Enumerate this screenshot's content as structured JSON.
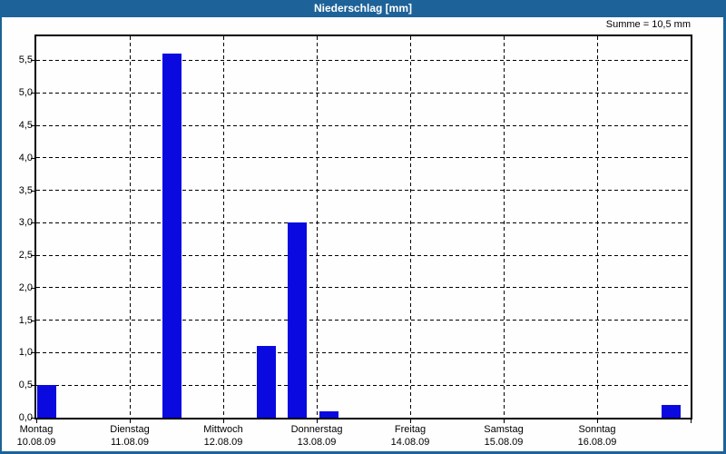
{
  "window": {
    "title": "Niederschlag [mm]"
  },
  "colors": {
    "titlebar_bg": "#1d6298",
    "title_text": "#ffffff",
    "window_border": "#1d6298",
    "bar_fill": "#0a0ae0",
    "plot_border": "#000000",
    "grid": "#000000",
    "background": "#fdfefd",
    "text": "#000000"
  },
  "chart_data": {
    "type": "bar",
    "title": "Niederschlag [mm]",
    "unit": "mm",
    "sum_label": "Summe = 10,5 mm",
    "sum_value_mm": 10.5,
    "ylim": [
      0,
      5.87
    ],
    "grid": "dashed",
    "legend": "none",
    "y_ticks": [
      {
        "value": 0.0,
        "label": "0,0"
      },
      {
        "value": 0.5,
        "label": "0,5"
      },
      {
        "value": 1.0,
        "label": "1,0"
      },
      {
        "value": 1.5,
        "label": "1,5"
      },
      {
        "value": 2.0,
        "label": "2,0"
      },
      {
        "value": 2.5,
        "label": "2,5"
      },
      {
        "value": 3.0,
        "label": "3,0"
      },
      {
        "value": 3.5,
        "label": "3,5"
      },
      {
        "value": 4.0,
        "label": "4,0"
      },
      {
        "value": 4.5,
        "label": "4,5"
      },
      {
        "value": 5.0,
        "label": "5,0"
      },
      {
        "value": 5.5,
        "label": "5,5"
      }
    ],
    "x_days": [
      {
        "weekday": "Montag",
        "date": "10.08.09"
      },
      {
        "weekday": "Dienstag",
        "date": "11.08.09"
      },
      {
        "weekday": "Mittwoch",
        "date": "12.08.09"
      },
      {
        "weekday": "Donnerstag",
        "date": "13.08.09"
      },
      {
        "weekday": "Freitag",
        "date": "14.08.09"
      },
      {
        "weekday": "Samstag",
        "date": "15.08.09"
      },
      {
        "weekday": "Sonntag",
        "date": "16.08.09"
      }
    ],
    "x_range_days": 7,
    "bar_width_days": 0.205,
    "bars": [
      {
        "day": "Montag",
        "x_day": 0.01,
        "value": 0.5
      },
      {
        "day": "Dienstag",
        "x_day": 1.35,
        "value": 5.6
      },
      {
        "day": "Mittwoch",
        "x_day": 2.36,
        "value": 1.1
      },
      {
        "day": "Mittwoch",
        "x_day": 2.69,
        "value": 3.0
      },
      {
        "day": "Donnerstag",
        "x_day": 3.03,
        "value": 0.1
      },
      {
        "day": "Sonntag",
        "x_day": 6.69,
        "value": 0.2
      }
    ]
  }
}
